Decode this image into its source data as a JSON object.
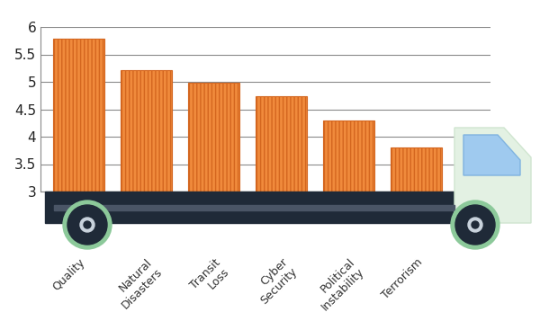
{
  "chart_data": {
    "type": "bar",
    "categories": [
      "Quality",
      "Natural Disasters",
      "Transit Loss",
      "Cyber Security",
      "Political Instability",
      "Terrorism"
    ],
    "values": [
      5.78,
      5.22,
      4.98,
      4.73,
      4.3,
      3.8
    ],
    "color": "#f08a3c",
    "ylim": [
      3,
      6
    ],
    "yticks": [
      3,
      3.5,
      4,
      4.5,
      5,
      5.5,
      6
    ],
    "grid": true
  }
}
